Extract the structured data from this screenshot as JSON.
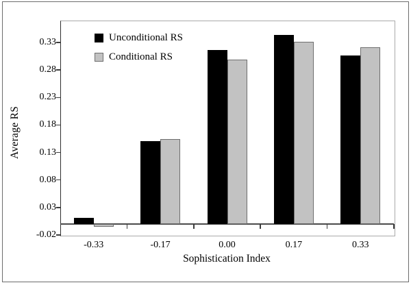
{
  "figure": {
    "kind": "grouped-bar-chart"
  },
  "chart_data": {
    "type": "bar",
    "title": "",
    "xlabel": "Sophistication Index",
    "ylabel": "Average RS",
    "categories": [
      "-0.33",
      "-0.17",
      "0.00",
      "0.17",
      "0.33"
    ],
    "series": [
      {
        "name": "Unconditional RS",
        "color": "#000000",
        "border": "#000000",
        "values": [
          0.011,
          0.151,
          0.316,
          0.344,
          0.306
        ]
      },
      {
        "name": "Conditional RS",
        "color": "#c2c2c2",
        "border": "#6e6e6e",
        "values": [
          -0.005,
          0.154,
          0.299,
          0.331,
          0.322
        ]
      }
    ],
    "ylim": [
      -0.02,
      0.37
    ],
    "yticks": [
      -0.02,
      0.03,
      0.08,
      0.13,
      0.18,
      0.23,
      0.28,
      0.33
    ],
    "legend_position": "top-left-inside",
    "grid": false
  }
}
